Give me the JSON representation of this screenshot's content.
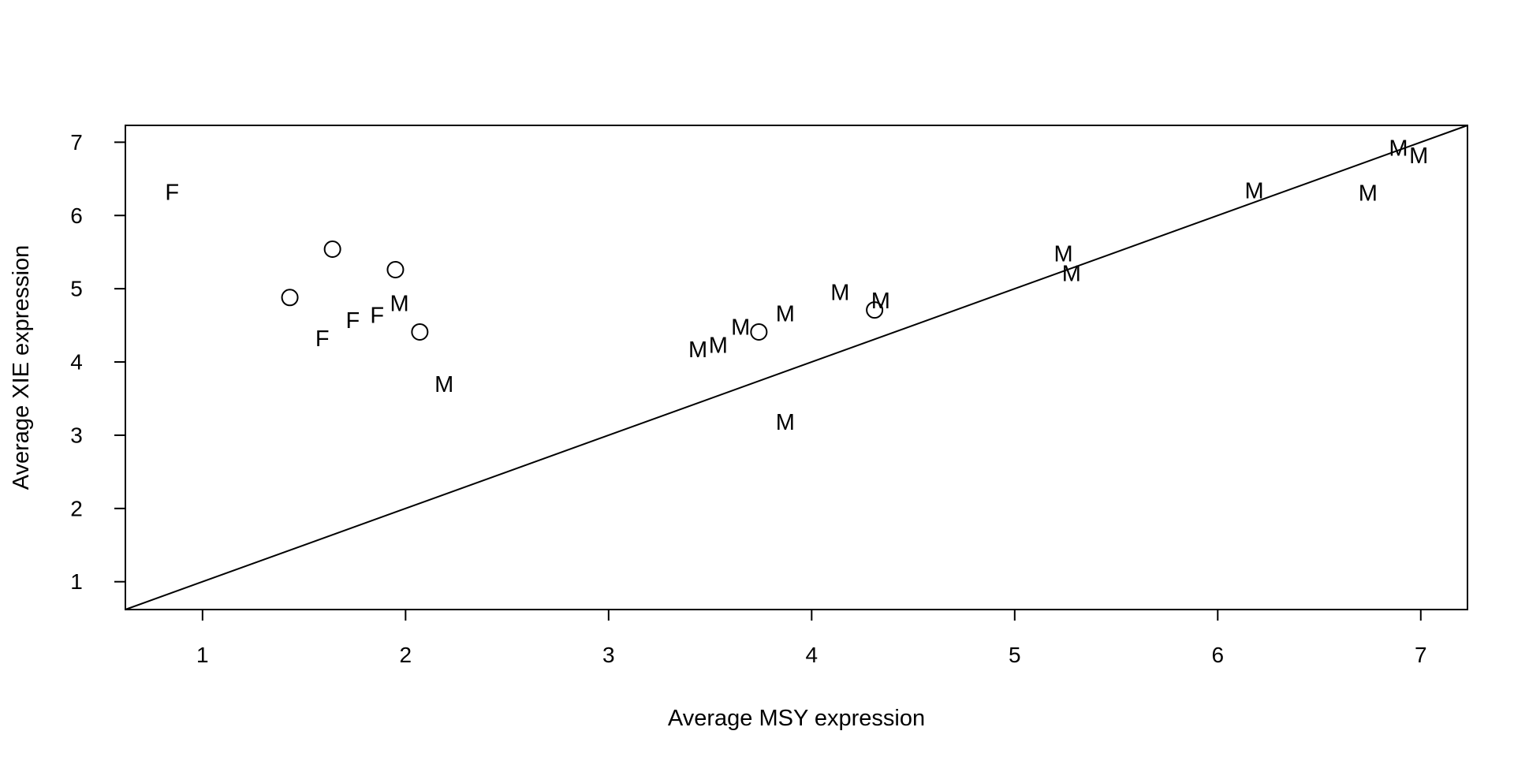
{
  "chart_data": {
    "type": "scatter",
    "title": "",
    "xlabel": "Average MSY expression",
    "ylabel": "Average XIE expression",
    "xlim": [
      0.62,
      7.23
    ],
    "ylim": [
      0.62,
      7.23
    ],
    "xticks": [
      1,
      2,
      3,
      4,
      5,
      6,
      7
    ],
    "yticks": [
      1,
      2,
      3,
      4,
      5,
      6,
      7
    ],
    "grid": false,
    "reference_line": {
      "slope": 1,
      "intercept": 0
    },
    "marker_style": "text",
    "points": [
      {
        "x": 0.85,
        "y": 6.31,
        "label": "F"
      },
      {
        "x": 1.59,
        "y": 4.31,
        "label": "F"
      },
      {
        "x": 1.74,
        "y": 4.56,
        "label": "F"
      },
      {
        "x": 1.86,
        "y": 4.63,
        "label": "F"
      },
      {
        "x": 1.43,
        "y": 4.88,
        "label": "O"
      },
      {
        "x": 1.64,
        "y": 5.54,
        "label": "O"
      },
      {
        "x": 1.95,
        "y": 5.26,
        "label": "O"
      },
      {
        "x": 2.07,
        "y": 4.41,
        "label": "O"
      },
      {
        "x": 3.74,
        "y": 4.41,
        "label": "O"
      },
      {
        "x": 4.31,
        "y": 4.71,
        "label": "O"
      },
      {
        "x": 1.97,
        "y": 4.79,
        "label": "M"
      },
      {
        "x": 2.19,
        "y": 3.69,
        "label": "M"
      },
      {
        "x": 3.44,
        "y": 4.16,
        "label": "M"
      },
      {
        "x": 3.54,
        "y": 4.22,
        "label": "M"
      },
      {
        "x": 3.65,
        "y": 4.47,
        "label": "M"
      },
      {
        "x": 3.87,
        "y": 4.65,
        "label": "M"
      },
      {
        "x": 3.87,
        "y": 3.17,
        "label": "M"
      },
      {
        "x": 4.14,
        "y": 4.94,
        "label": "M"
      },
      {
        "x": 4.34,
        "y": 4.83,
        "label": "M"
      },
      {
        "x": 5.24,
        "y": 5.47,
        "label": "M"
      },
      {
        "x": 5.28,
        "y": 5.2,
        "label": "M"
      },
      {
        "x": 6.18,
        "y": 6.33,
        "label": "M"
      },
      {
        "x": 6.74,
        "y": 6.3,
        "label": "M"
      },
      {
        "x": 6.89,
        "y": 6.91,
        "label": "M"
      },
      {
        "x": 6.99,
        "y": 6.81,
        "label": "M"
      }
    ]
  }
}
